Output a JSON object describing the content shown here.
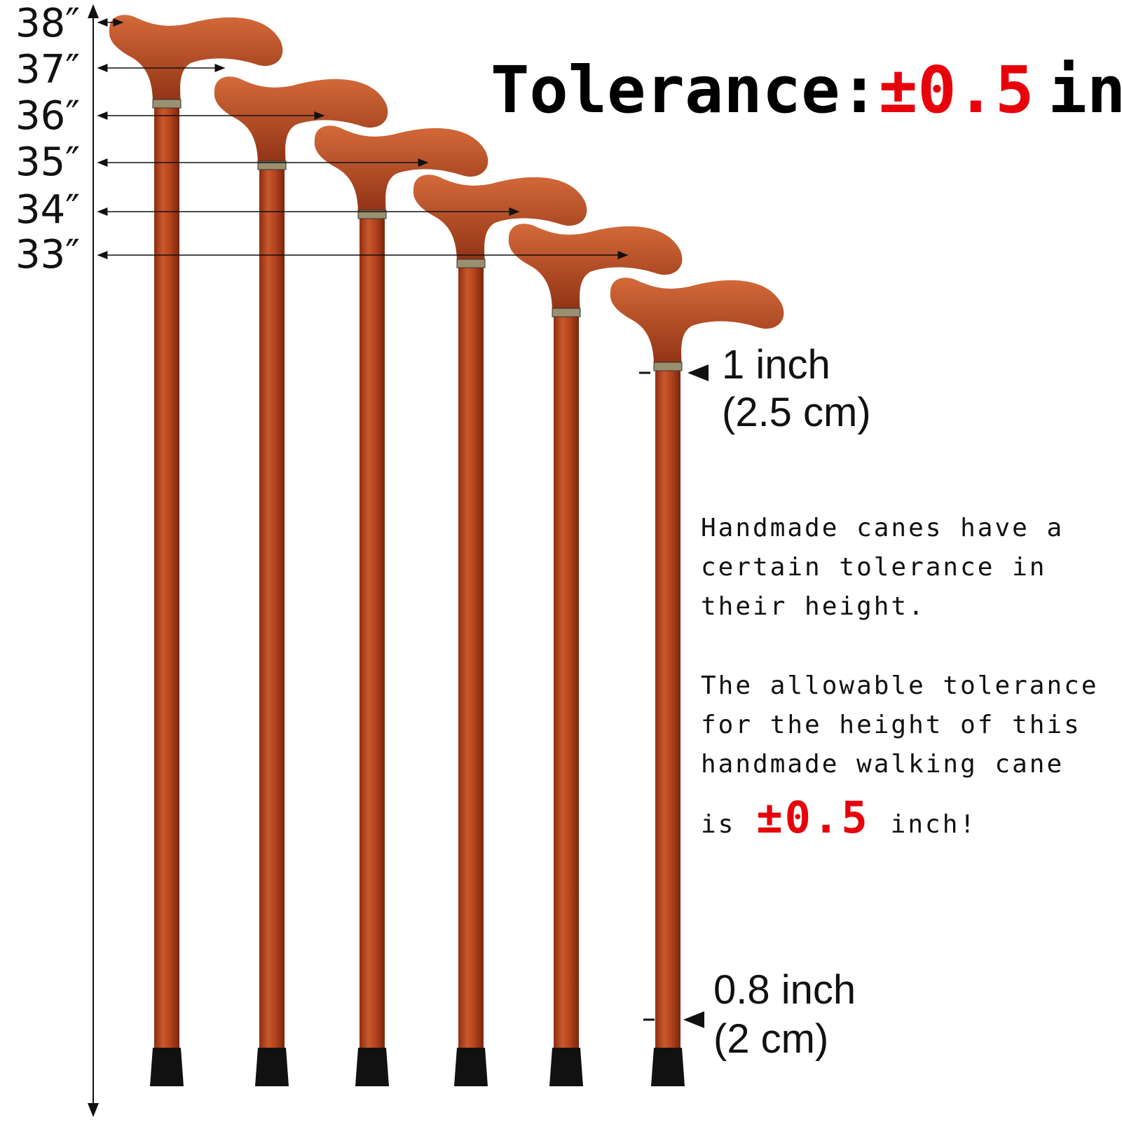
{
  "height_labels": [
    "38″",
    "37″",
    "36″",
    "35″",
    "34″",
    "33″"
  ],
  "title": {
    "label": "Tolerance:",
    "value": "±0.5",
    "unit": "inch"
  },
  "top_diameter": {
    "inch": "1 inch",
    "cm": "(2.5 cm)"
  },
  "bottom_diameter": {
    "inch": "0.8 inch",
    "cm": "(2 cm)"
  },
  "note": {
    "paragraph_1": [
      "Handmade canes have a",
      "certain tolerance in",
      "their height."
    ],
    "paragraph_2": [
      "The allowable tolerance",
      "for the height of this",
      "handmade walking cane"
    ],
    "last_line": {
      "prefix": "is",
      "value": "±0.5",
      "unit": "inch!"
    }
  }
}
